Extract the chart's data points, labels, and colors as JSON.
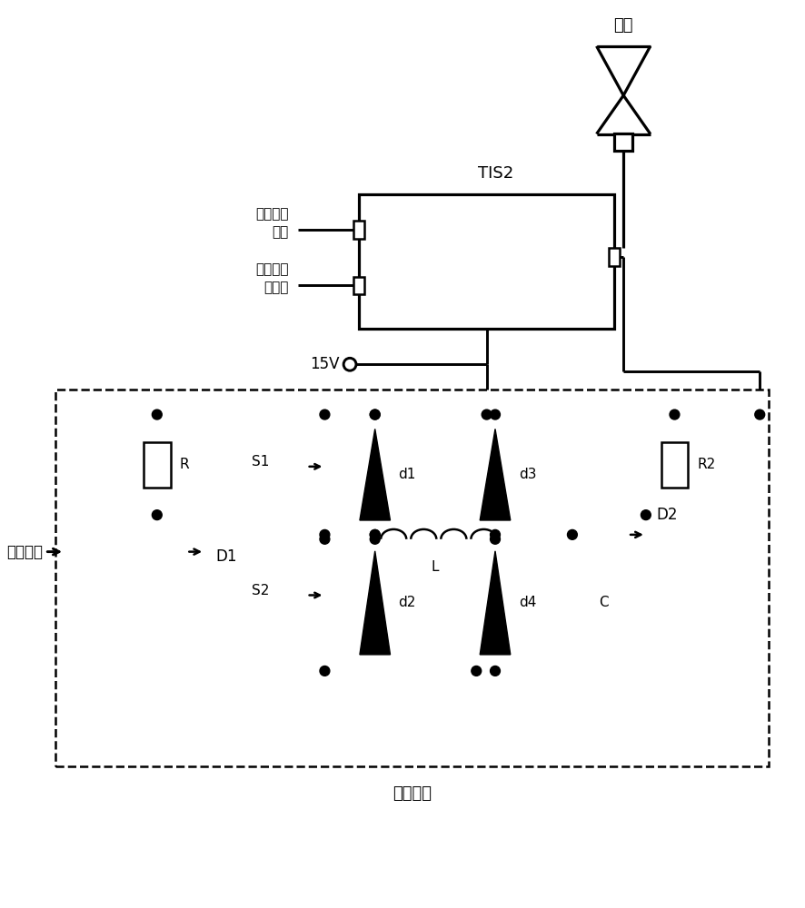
{
  "bg_color": "#ffffff",
  "lc": "#000000",
  "lw": 1.8,
  "bottom_label": "驱动电路",
  "antenna_label": "天线",
  "tis2_label": "TIS2",
  "signal1_label": "同步脉冲\n信号",
  "signal2_label": "控制及数\n据信息",
  "voltage_label": "15V",
  "control_label": "控制信号",
  "labels": {
    "R": "R",
    "R2": "R2",
    "D1": "D1",
    "D2": "D2",
    "S1": "S1",
    "S2": "S2",
    "d1": "d1",
    "d2": "d2",
    "d3": "d3",
    "d4": "d4",
    "L": "L",
    "C": "C"
  }
}
